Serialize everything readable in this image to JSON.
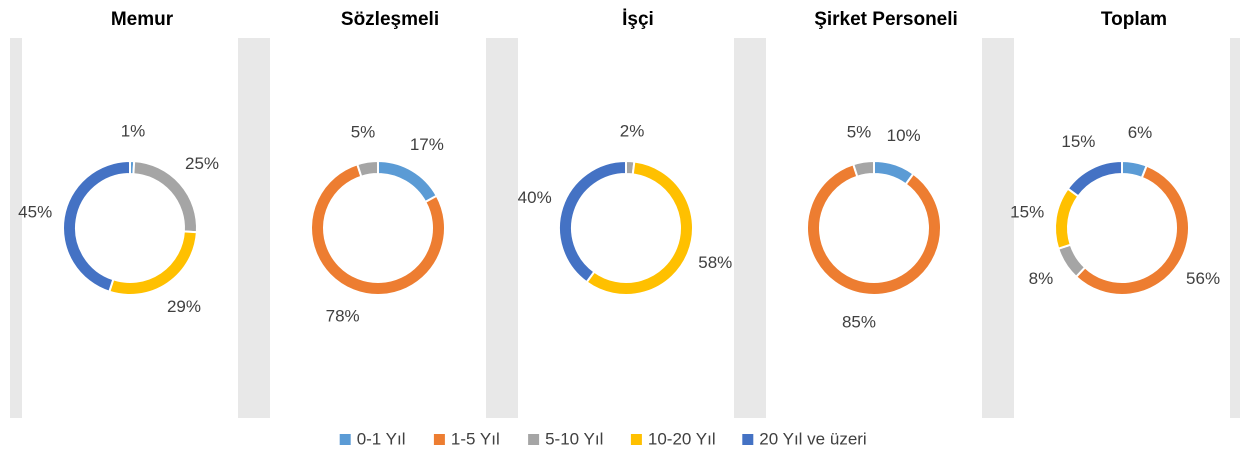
{
  "legend": {
    "categories": [
      "0-1 Yıl",
      "1-5 Yıl",
      "5-10 Yıl",
      "10-20 Yıl",
      "20 Yıl ve üzeri"
    ],
    "colors": [
      "#5b9bd5",
      "#ed7d31",
      "#a5a5a5",
      "#ffc000",
      "#4472c4"
    ]
  },
  "chart_data": [
    {
      "type": "donut",
      "title": "Memur",
      "values": [
        1,
        null,
        25,
        29,
        45
      ],
      "value_labels": [
        "1%",
        null,
        "25%",
        "29%",
        "45%"
      ]
    },
    {
      "type": "donut",
      "title": "Sözleşmeli",
      "values": [
        17,
        78,
        5,
        null,
        null
      ],
      "value_labels": [
        "17%",
        "78%",
        "5%",
        null,
        null
      ]
    },
    {
      "type": "donut",
      "title": "İşçi",
      "values": [
        null,
        null,
        2,
        58,
        40
      ],
      "value_labels": [
        null,
        null,
        "2%",
        "58%",
        "40%"
      ]
    },
    {
      "type": "donut",
      "title": "Şirket Personeli",
      "values": [
        10,
        85,
        5,
        null,
        null
      ],
      "value_labels": [
        "10%",
        "85%",
        "5%",
        null,
        null
      ]
    },
    {
      "type": "donut",
      "title": "Toplam",
      "values": [
        6,
        56,
        8,
        15,
        15
      ],
      "value_labels": [
        "6%",
        "56%",
        "8%",
        "15%",
        "15%"
      ]
    }
  ]
}
